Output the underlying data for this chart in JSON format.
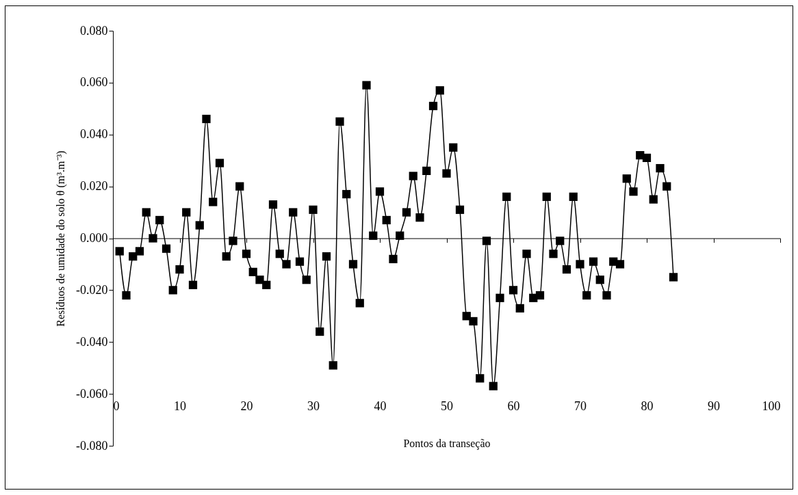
{
  "chart_data": {
    "type": "line",
    "xlabel": "Pontos da transeção",
    "ylabel": "Resíduos de umidade do solo θ (m³.m⁻³)",
    "x": [
      1,
      2,
      3,
      4,
      5,
      6,
      7,
      8,
      9,
      10,
      11,
      12,
      13,
      14,
      15,
      16,
      17,
      18,
      19,
      20,
      21,
      22,
      23,
      24,
      25,
      26,
      27,
      28,
      29,
      30,
      31,
      32,
      33,
      34,
      35,
      36,
      37,
      38,
      39,
      40,
      41,
      42,
      43,
      44,
      45,
      46,
      47,
      48,
      49,
      50,
      51,
      52,
      53,
      54,
      55,
      56,
      57,
      58,
      59,
      60,
      61,
      62,
      63,
      64,
      65,
      66,
      67,
      68,
      69,
      70,
      71,
      72,
      73,
      74,
      75,
      76,
      77,
      78,
      79,
      80,
      81,
      82,
      83,
      84
    ],
    "series": [
      {
        "color": "#000000",
        "values": [
          -0.005,
          -0.022,
          -0.007,
          -0.005,
          0.01,
          0.0,
          0.007,
          -0.004,
          -0.02,
          -0.012,
          0.01,
          -0.018,
          0.005,
          0.046,
          0.014,
          0.029,
          -0.007,
          -0.001,
          0.02,
          -0.006,
          -0.013,
          -0.016,
          -0.018,
          0.013,
          -0.006,
          -0.01,
          0.01,
          -0.009,
          -0.016,
          0.011,
          -0.036,
          -0.007,
          -0.049,
          0.045,
          0.017,
          -0.01,
          -0.025,
          0.059,
          0.001,
          0.018,
          0.007,
          -0.008,
          0.001,
          0.01,
          0.024,
          0.008,
          0.026,
          0.051,
          0.057,
          0.025,
          0.035,
          0.011,
          -0.03,
          -0.032,
          -0.054,
          -0.001,
          -0.057,
          -0.023,
          0.016,
          -0.02,
          -0.027,
          -0.006,
          -0.023,
          -0.022,
          0.016,
          -0.006,
          -0.001,
          -0.012,
          0.016,
          -0.01,
          -0.022,
          -0.009,
          -0.016,
          -0.022,
          -0.009,
          -0.01,
          0.023,
          0.018,
          0.032,
          0.031,
          0.015,
          0.027,
          0.02,
          -0.015
        ]
      }
    ],
    "xlim": [
      0,
      100
    ],
    "xticks": [
      0,
      10,
      20,
      30,
      40,
      50,
      60,
      70,
      80,
      90,
      100
    ],
    "ylim": [
      -0.08,
      0.08
    ],
    "yticks": [
      {
        "value": -0.08,
        "label": "-0.080"
      },
      {
        "value": -0.06,
        "label": "-0.060"
      },
      {
        "value": -0.04,
        "label": "-0.040"
      },
      {
        "value": -0.02,
        "label": "-0.020"
      },
      {
        "value": 0,
        "label": "0.000"
      },
      {
        "value": 0.02,
        "label": "0.020"
      },
      {
        "value": 0.04,
        "label": "0.040"
      },
      {
        "value": 0.06,
        "label": "0.060"
      },
      {
        "value": 0.08,
        "label": "0.080"
      }
    ],
    "marker": "square",
    "line_style": "solid"
  }
}
